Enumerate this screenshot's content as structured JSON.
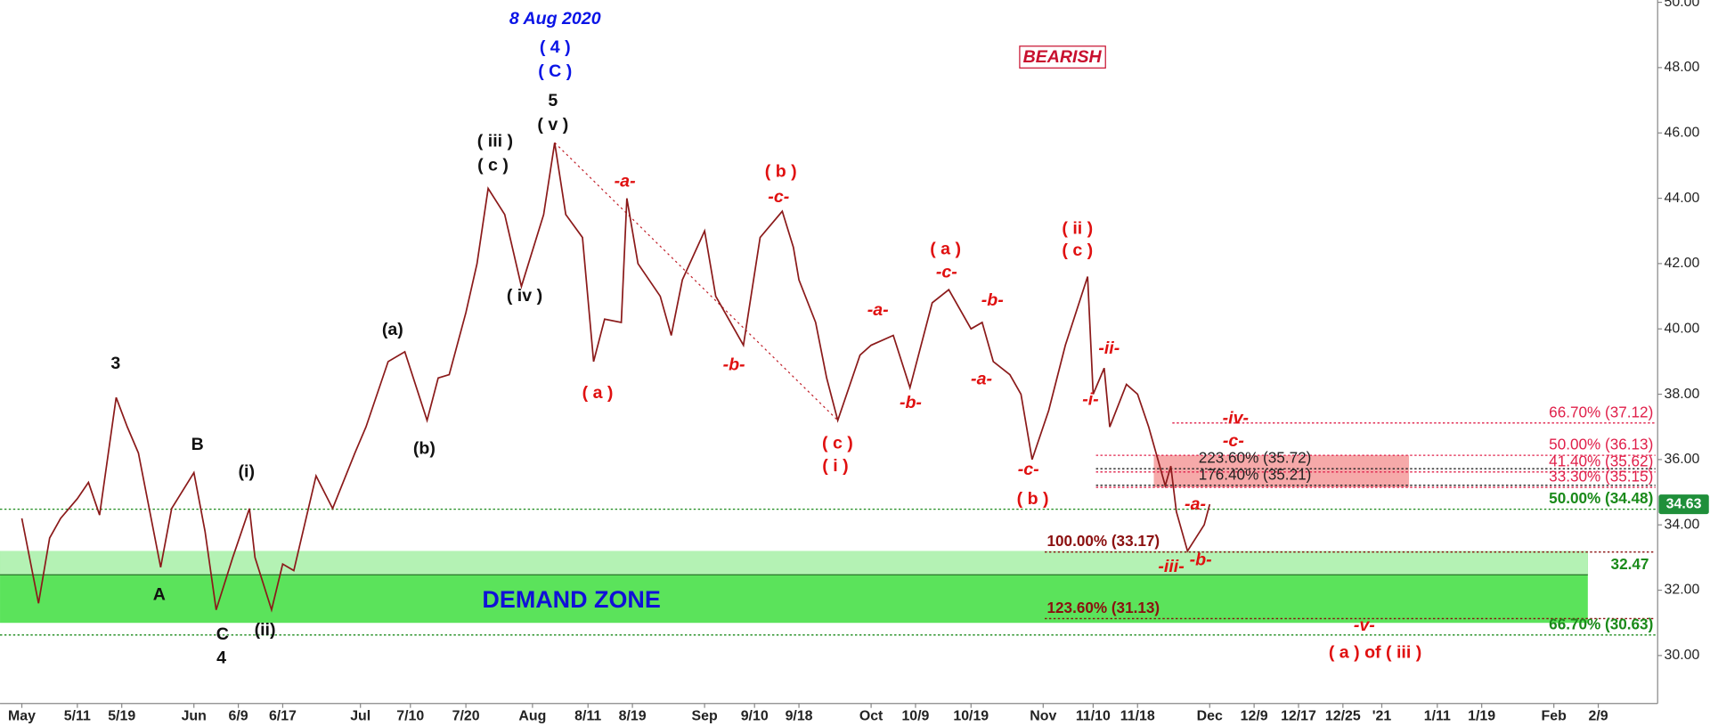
{
  "chart_data": {
    "type": "line",
    "x": [
      "5/1",
      "5/4",
      "5/6",
      "5/8",
      "5/11",
      "5/13",
      "5/15",
      "5/18",
      "5/20",
      "5/22",
      "5/26",
      "5/28",
      "6/1",
      "6/3",
      "6/5",
      "6/8",
      "6/11",
      "6/12",
      "6/15",
      "6/17",
      "6/19",
      "6/23",
      "6/26",
      "6/30",
      "7/2",
      "7/6",
      "7/9",
      "7/13",
      "7/15",
      "7/17",
      "7/20",
      "7/22",
      "7/24",
      "7/27",
      "7/30",
      "8/3",
      "8/5",
      "8/7",
      "8/10",
      "8/12",
      "8/14",
      "8/17",
      "8/18",
      "8/20",
      "8/24",
      "8/26",
      "8/28",
      "9/1",
      "9/3",
      "9/8",
      "9/11",
      "9/15",
      "9/17",
      "9/18",
      "9/21",
      "9/23",
      "9/25",
      "9/29",
      "10/1",
      "10/5",
      "10/8",
      "10/12",
      "10/15",
      "10/19",
      "10/21",
      "10/23",
      "10/26",
      "10/28",
      "10/30",
      "11/2",
      "11/5",
      "11/9",
      "11/10",
      "11/12",
      "11/13",
      "11/16",
      "11/18",
      "11/20",
      "11/23",
      "11/24",
      "11/25",
      "11/27",
      "11/30",
      "12/1"
    ],
    "series": [
      {
        "color": "#8b1a1a",
        "values": [
          34.2,
          31.6,
          33.6,
          34.2,
          34.8,
          35.3,
          34.3,
          37.9,
          37.0,
          36.2,
          32.7,
          34.5,
          35.6,
          33.8,
          31.4,
          33.0,
          34.5,
          33.0,
          31.4,
          32.8,
          32.6,
          35.5,
          34.5,
          36.2,
          37.0,
          39.0,
          39.3,
          37.2,
          38.5,
          38.6,
          40.5,
          42.0,
          44.3,
          43.5,
          41.3,
          43.5,
          45.7,
          43.5,
          42.8,
          39.0,
          40.3,
          40.2,
          44.0,
          42.0,
          41.0,
          39.8,
          41.5,
          43.0,
          41.0,
          39.5,
          42.8,
          43.6,
          42.5,
          41.5,
          40.2,
          38.5,
          37.2,
          39.2,
          39.5,
          39.8,
          38.2,
          40.8,
          41.2,
          40.0,
          40.2,
          39.0,
          38.6,
          38.0,
          36.0,
          37.5,
          39.5,
          41.6,
          38.0,
          38.8,
          37.0,
          38.3,
          38.0,
          37.0,
          35.2,
          35.8,
          34.4,
          33.2,
          34.0,
          34.63
        ]
      }
    ],
    "last_color": "#1f8f3a",
    "xticks": [
      "May",
      "5/11",
      "5/19",
      "Jun",
      "6/9",
      "6/17",
      "Jul",
      "7/10",
      "7/20",
      "Aug",
      "8/11",
      "8/19",
      "Sep",
      "9/10",
      "9/18",
      "Oct",
      "10/9",
      "10/19",
      "Nov",
      "11/10",
      "11/18",
      "Dec",
      "12/9",
      "12/17",
      "12/25",
      "'21",
      "1/11",
      "1/19",
      "Feb",
      "2/9"
    ],
    "ylim": [
      28.53,
      50.07
    ],
    "yticks": [
      {
        "value": 30,
        "label": "30.00"
      },
      {
        "value": 32,
        "label": "32.00"
      },
      {
        "value": 34,
        "label": "34.00"
      },
      {
        "value": 36,
        "label": "36.00"
      },
      {
        "value": 38,
        "label": "38.00"
      },
      {
        "value": 40,
        "label": "40.00"
      },
      {
        "value": 42,
        "label": "42.00"
      },
      {
        "value": 44,
        "label": "44.00"
      },
      {
        "value": 46,
        "label": "46.00"
      },
      {
        "value": 48,
        "label": "48.00"
      },
      {
        "value": 50,
        "label": "50.00"
      }
    ],
    "levels": [
      {
        "value": 37.12,
        "label": "66.70% (37.12)",
        "color": "#e0204a"
      },
      {
        "value": 36.13,
        "label": "50.00% (36.13)",
        "color": "#e0204a"
      },
      {
        "value": 35.72,
        "label": "223.60% (35.72)",
        "color": "#222222"
      },
      {
        "value": 35.62,
        "label": "41.40% (35.62)",
        "color": "#e0204a"
      },
      {
        "value": 35.21,
        "label": "176.40% (35.21)",
        "color": "#222222"
      },
      {
        "value": 35.15,
        "label": "33.30% (35.15)",
        "color": "#e0204a"
      },
      {
        "value": 34.48,
        "label": "50.00% (34.48)",
        "color": "#1a8a1a"
      },
      {
        "value": 33.17,
        "label": "100.00% (33.17)",
        "color": "#8b1010"
      },
      {
        "value": 32.47,
        "color": "#1a8a1a"
      },
      {
        "value": 31.13,
        "label": "123.60% (31.13)",
        "color": "#8b1010"
      },
      {
        "value": 30.63,
        "label": "66.70% (30.63)",
        "color": "#1a8a1a"
      }
    ],
    "zones": [
      {
        "name": "DEMAND ZONE",
        "ylim": [
          31.0,
          33.2
        ],
        "color": "#5be35b"
      },
      {
        "ylim": [
          32.47,
          33.2
        ],
        "color": "#b4f2b4"
      },
      {
        "ylim": [
          35.15,
          36.13
        ],
        "color": "#f6a9a9"
      }
    ],
    "annotations": [
      {
        "text": "8 Aug 2020",
        "color": "#0a14e6"
      },
      {
        "text": "( 4 )",
        "color": "#0a14e6"
      },
      {
        "text": "( C )",
        "color": "#0a14e6"
      },
      {
        "text": "5",
        "color": "#111111"
      },
      {
        "text": "( v )",
        "color": "#111111"
      },
      {
        "text": "( iii )",
        "color": "#111111"
      },
      {
        "text": "( c )",
        "color": "#111111"
      },
      {
        "text": "( iv )",
        "color": "#111111"
      },
      {
        "text": "(a)",
        "color": "#111111"
      },
      {
        "text": "(b)",
        "color": "#111111"
      },
      {
        "text": "3",
        "color": "#111111"
      },
      {
        "text": "B",
        "color": "#111111"
      },
      {
        "text": "A",
        "color": "#111111"
      },
      {
        "text": "C",
        "color": "#111111"
      },
      {
        "text": "4",
        "color": "#111111"
      },
      {
        "text": "(i)",
        "color": "#111111"
      },
      {
        "text": "(ii)",
        "color": "#111111"
      },
      {
        "text": "-a-",
        "color": "#e01010"
      },
      {
        "text": "( a )",
        "color": "#e01010"
      },
      {
        "text": "( b )",
        "color": "#e01010"
      },
      {
        "text": "-c-",
        "color": "#e01010"
      },
      {
        "text": "-b-",
        "color": "#e01010"
      },
      {
        "text": "( c )",
        "color": "#e01010"
      },
      {
        "text": "( i )",
        "color": "#e01010"
      },
      {
        "text": "-a-",
        "color": "#e01010"
      },
      {
        "text": "-b-",
        "color": "#e01010"
      },
      {
        "text": "( a )",
        "color": "#e01010"
      },
      {
        "text": "-c-",
        "color": "#e01010"
      },
      {
        "text": "-b-",
        "color": "#e01010"
      },
      {
        "text": "-a-",
        "color": "#e01010"
      },
      {
        "text": "-c-",
        "color": "#e01010"
      },
      {
        "text": "( b )",
        "color": "#e01010"
      },
      {
        "text": "( ii )",
        "color": "#e01010"
      },
      {
        "text": "( c )",
        "color": "#e01010"
      },
      {
        "text": "-ii-",
        "color": "#e01010"
      },
      {
        "text": "-i-",
        "color": "#e01010"
      },
      {
        "text": "-iv-",
        "color": "#e01010"
      },
      {
        "text": "-c-",
        "color": "#e01010"
      },
      {
        "text": "-a-",
        "color": "#e01010"
      },
      {
        "text": "-iii-",
        "color": "#e01010"
      },
      {
        "text": "-b-",
        "color": "#e01010"
      },
      {
        "text": "-v-",
        "color": "#e01010"
      },
      {
        "text": "( a ) of ( iii )",
        "color": "#e01010"
      },
      {
        "text": "BEARISH",
        "color": "#c8102e"
      }
    ]
  }
}
